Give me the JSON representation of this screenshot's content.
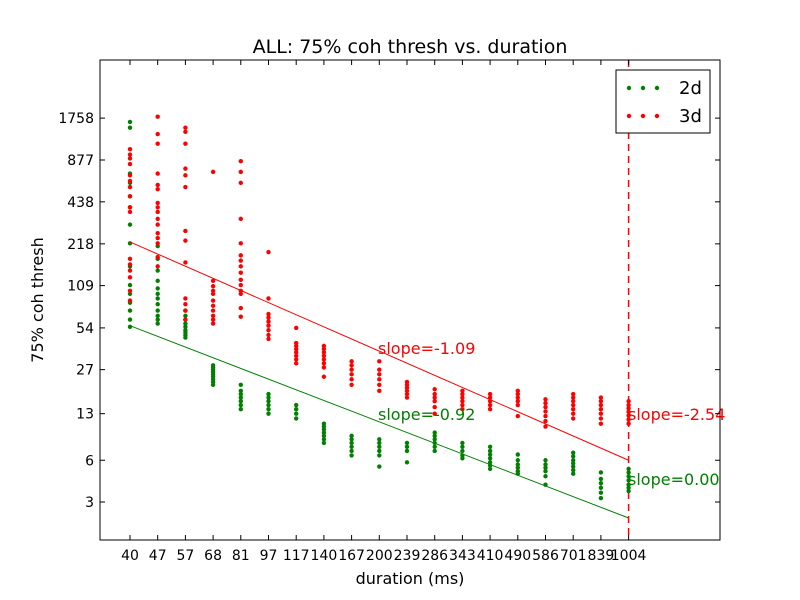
{
  "chart_data": {
    "type": "scatter",
    "title": "ALL: 75% coh thresh vs. duration",
    "xlabel": "duration (ms)",
    "ylabel": "75% coh thresh",
    "x_categories": [
      "40",
      "47",
      "57",
      "68",
      "81",
      "97",
      "117",
      "140",
      "167",
      "200",
      "239",
      "286",
      "343",
      "410",
      "490",
      "586",
      "701",
      "839",
      "1004"
    ],
    "y_scale": "log2",
    "y_ticks": [
      3,
      6,
      13,
      27,
      54,
      109,
      218,
      438,
      877,
      1758
    ],
    "grid": false,
    "legend": "top-right",
    "series": [
      {
        "name": "2d",
        "color": "#008000",
        "points": [
          [
            0,
            55
          ],
          [
            0,
            62
          ],
          [
            0,
            72
          ],
          [
            0,
            82
          ],
          [
            0,
            95
          ],
          [
            0,
            110
          ],
          [
            0,
            150
          ],
          [
            0,
            220
          ],
          [
            0,
            300
          ],
          [
            0,
            400
          ],
          [
            0,
            480
          ],
          [
            0,
            600
          ],
          [
            0,
            700
          ],
          [
            0,
            1500
          ],
          [
            0,
            1650
          ],
          [
            1,
            58
          ],
          [
            1,
            62
          ],
          [
            1,
            66
          ],
          [
            1,
            72
          ],
          [
            1,
            80
          ],
          [
            1,
            88
          ],
          [
            1,
            95
          ],
          [
            1,
            104
          ],
          [
            1,
            118
          ],
          [
            1,
            140
          ],
          [
            1,
            170
          ],
          [
            1,
            210
          ],
          [
            2,
            46
          ],
          [
            2,
            48
          ],
          [
            2,
            50
          ],
          [
            2,
            52
          ],
          [
            2,
            55
          ],
          [
            2,
            58
          ],
          [
            2,
            62
          ],
          [
            2,
            66
          ],
          [
            2,
            72
          ],
          [
            3,
            21
          ],
          [
            3,
            22
          ],
          [
            3,
            23
          ],
          [
            3,
            24
          ],
          [
            3,
            25
          ],
          [
            3,
            26
          ],
          [
            3,
            27
          ],
          [
            3,
            28
          ],
          [
            3,
            29
          ],
          [
            4,
            14
          ],
          [
            4,
            15
          ],
          [
            4,
            16
          ],
          [
            4,
            17
          ],
          [
            4,
            18
          ],
          [
            4,
            19
          ],
          [
            4,
            21
          ],
          [
            5,
            13
          ],
          [
            5,
            14
          ],
          [
            5,
            15
          ],
          [
            5,
            16
          ],
          [
            5,
            17
          ],
          [
            5,
            18
          ],
          [
            6,
            12
          ],
          [
            6,
            13
          ],
          [
            6,
            14
          ],
          [
            6,
            15
          ],
          [
            7,
            8
          ],
          [
            7,
            8.5
          ],
          [
            7,
            9
          ],
          [
            7,
            9.5
          ],
          [
            7,
            10
          ],
          [
            7,
            10.5
          ],
          [
            7,
            11
          ],
          [
            8,
            6.5
          ],
          [
            8,
            7
          ],
          [
            8,
            7.5
          ],
          [
            8,
            8
          ],
          [
            8,
            8.5
          ],
          [
            8,
            9
          ],
          [
            9,
            5.4
          ],
          [
            9,
            6.5
          ],
          [
            9,
            7
          ],
          [
            9,
            7.5
          ],
          [
            9,
            8
          ],
          [
            9,
            8.5
          ],
          [
            10,
            5.8
          ],
          [
            10,
            7
          ],
          [
            10,
            7.5
          ],
          [
            10,
            8
          ],
          [
            11,
            7
          ],
          [
            11,
            7.5
          ],
          [
            11,
            8
          ],
          [
            11,
            8.5
          ],
          [
            11,
            9
          ],
          [
            11,
            9.5
          ],
          [
            12,
            6.2
          ],
          [
            12,
            6.5
          ],
          [
            12,
            7
          ],
          [
            12,
            7.5
          ],
          [
            12,
            8
          ],
          [
            13,
            5.2
          ],
          [
            13,
            5.5
          ],
          [
            13,
            5.8
          ],
          [
            13,
            6.2
          ],
          [
            13,
            6.6
          ],
          [
            13,
            7
          ],
          [
            13,
            7.5
          ],
          [
            14,
            4.8
          ],
          [
            14,
            5
          ],
          [
            14,
            5.3
          ],
          [
            14,
            5.6
          ],
          [
            14,
            6
          ],
          [
            14,
            6.6
          ],
          [
            15,
            4
          ],
          [
            15,
            4.6
          ],
          [
            15,
            5
          ],
          [
            15,
            5.3
          ],
          [
            15,
            5.6
          ],
          [
            15,
            6
          ],
          [
            16,
            4.8
          ],
          [
            16,
            5.1
          ],
          [
            16,
            5.4
          ],
          [
            16,
            5.7
          ],
          [
            16,
            6
          ],
          [
            16,
            6.4
          ],
          [
            16,
            6.8
          ],
          [
            17,
            3.2
          ],
          [
            17,
            3.5
          ],
          [
            17,
            3.8
          ],
          [
            17,
            4.1
          ],
          [
            17,
            4.4
          ],
          [
            17,
            4.9
          ],
          [
            18,
            3.6
          ],
          [
            18,
            3.8
          ],
          [
            18,
            4
          ],
          [
            18,
            4.3
          ],
          [
            18,
            4.6
          ],
          [
            18,
            4.9
          ],
          [
            18,
            5.2
          ]
        ],
        "fit": {
          "label": "slope=-0.92",
          "x_start": 0,
          "y_start": 56,
          "x_end": 18,
          "y_end": 2.3
        },
        "segment_label": "slope=0.00"
      },
      {
        "name": "3d",
        "color": "#ff0000",
        "points": [
          [
            0,
            85
          ],
          [
            0,
            100
          ],
          [
            0,
            125
          ],
          [
            0,
            140
          ],
          [
            0,
            155
          ],
          [
            0,
            170
          ],
          [
            0,
            370
          ],
          [
            0,
            400
          ],
          [
            0,
            480
          ],
          [
            0,
            560
          ],
          [
            0,
            620
          ],
          [
            0,
            680
          ],
          [
            0,
            820
          ],
          [
            0,
            900
          ],
          [
            0,
            960
          ],
          [
            0,
            1050
          ],
          [
            1,
            150
          ],
          [
            1,
            175
          ],
          [
            1,
            220
          ],
          [
            1,
            240
          ],
          [
            1,
            260
          ],
          [
            1,
            300
          ],
          [
            1,
            330
          ],
          [
            1,
            370
          ],
          [
            1,
            400
          ],
          [
            1,
            430
          ],
          [
            1,
            540
          ],
          [
            1,
            580
          ],
          [
            1,
            700
          ],
          [
            1,
            1150
          ],
          [
            1,
            1350
          ],
          [
            1,
            1800
          ],
          [
            2,
            62
          ],
          [
            2,
            72
          ],
          [
            2,
            80
          ],
          [
            2,
            88
          ],
          [
            2,
            160
          ],
          [
            2,
            230
          ],
          [
            2,
            270
          ],
          [
            2,
            560
          ],
          [
            2,
            680
          ],
          [
            2,
            760
          ],
          [
            2,
            1150
          ],
          [
            2,
            1400
          ],
          [
            2,
            1500
          ],
          [
            3,
            58
          ],
          [
            3,
            62
          ],
          [
            3,
            66
          ],
          [
            3,
            72
          ],
          [
            3,
            78
          ],
          [
            3,
            85
          ],
          [
            3,
            95
          ],
          [
            3,
            100
          ],
          [
            3,
            108
          ],
          [
            3,
            118
          ],
          [
            3,
            720
          ],
          [
            4,
            65
          ],
          [
            4,
            75
          ],
          [
            4,
            95
          ],
          [
            4,
            100
          ],
          [
            4,
            110
          ],
          [
            4,
            120
          ],
          [
            4,
            135
          ],
          [
            4,
            150
          ],
          [
            4,
            165
          ],
          [
            4,
            180
          ],
          [
            4,
            220
          ],
          [
            4,
            330
          ],
          [
            4,
            600
          ],
          [
            4,
            720
          ],
          [
            4,
            860
          ],
          [
            5,
            45
          ],
          [
            5,
            48
          ],
          [
            5,
            52
          ],
          [
            5,
            56
          ],
          [
            5,
            60
          ],
          [
            5,
            64
          ],
          [
            5,
            68
          ],
          [
            5,
            88
          ],
          [
            5,
            190
          ],
          [
            6,
            30
          ],
          [
            6,
            32
          ],
          [
            6,
            34
          ],
          [
            6,
            36
          ],
          [
            6,
            38
          ],
          [
            6,
            40
          ],
          [
            6,
            42
          ],
          [
            6,
            54
          ],
          [
            7,
            24
          ],
          [
            7,
            28
          ],
          [
            7,
            30
          ],
          [
            7,
            32
          ],
          [
            7,
            34
          ],
          [
            7,
            36
          ],
          [
            7,
            38
          ],
          [
            7,
            40
          ],
          [
            8,
            21
          ],
          [
            8,
            23
          ],
          [
            8,
            25
          ],
          [
            8,
            27
          ],
          [
            8,
            29
          ],
          [
            8,
            31
          ],
          [
            9,
            19
          ],
          [
            9,
            21
          ],
          [
            9,
            23
          ],
          [
            9,
            25
          ],
          [
            9,
            27
          ],
          [
            9,
            31
          ],
          [
            10,
            17
          ],
          [
            10,
            18
          ],
          [
            10,
            19
          ],
          [
            10,
            20
          ],
          [
            10,
            21
          ],
          [
            10,
            22
          ],
          [
            11,
            13
          ],
          [
            11,
            14.5
          ],
          [
            11,
            16
          ],
          [
            11,
            17
          ],
          [
            11,
            18
          ],
          [
            11,
            19.5
          ],
          [
            12,
            14
          ],
          [
            12,
            15
          ],
          [
            12,
            16
          ],
          [
            12,
            17
          ],
          [
            12,
            18
          ],
          [
            12,
            19
          ],
          [
            13,
            14
          ],
          [
            13,
            15
          ],
          [
            13,
            16
          ],
          [
            13,
            17
          ],
          [
            13,
            18
          ],
          [
            14,
            12.5
          ],
          [
            14,
            15
          ],
          [
            14,
            16
          ],
          [
            14,
            17
          ],
          [
            14,
            18
          ],
          [
            14,
            19
          ],
          [
            15,
            10.5
          ],
          [
            15,
            11.5
          ],
          [
            15,
            12.5
          ],
          [
            15,
            13.5
          ],
          [
            15,
            14.5
          ],
          [
            15,
            15.5
          ],
          [
            15,
            16.5
          ],
          [
            16,
            12
          ],
          [
            16,
            13
          ],
          [
            16,
            14
          ],
          [
            16,
            15
          ],
          [
            16,
            16
          ],
          [
            16,
            17
          ],
          [
            16,
            18
          ],
          [
            17,
            11
          ],
          [
            17,
            12
          ],
          [
            17,
            13
          ],
          [
            17,
            14
          ],
          [
            17,
            15
          ],
          [
            17,
            16
          ],
          [
            17,
            17
          ],
          [
            18,
            11
          ],
          [
            18,
            11.8
          ],
          [
            18,
            12.6
          ],
          [
            18,
            13.4
          ],
          [
            18,
            14.2
          ],
          [
            18,
            15
          ],
          [
            18,
            16
          ]
        ],
        "fit": {
          "label": "slope=-1.09",
          "x_start": 0,
          "y_start": 225,
          "x_end": 18,
          "y_end": 6
        },
        "segment_label": "slope=-2.54"
      }
    ],
    "vline": {
      "x": 18,
      "color": "#ff0000"
    }
  }
}
